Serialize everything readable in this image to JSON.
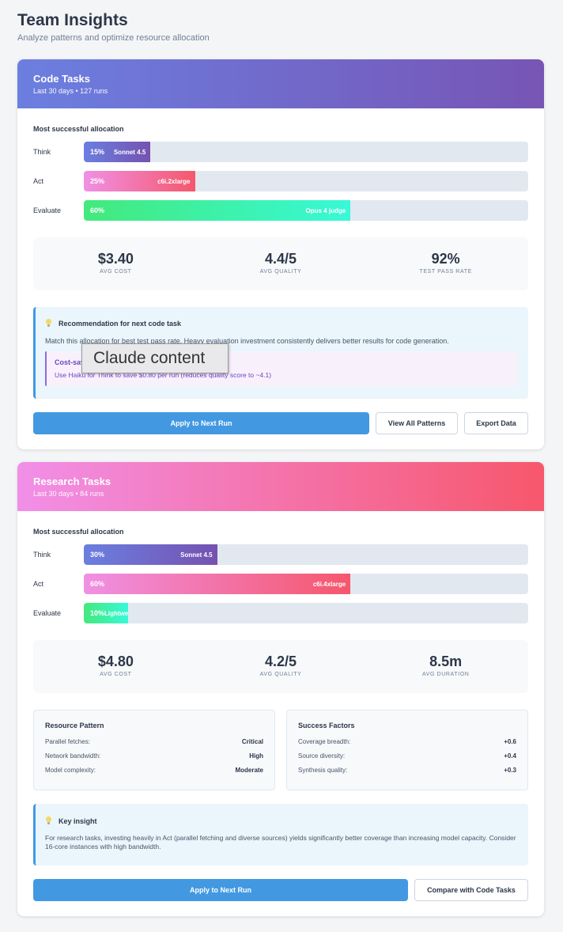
{
  "header": {
    "title": "Team Insights",
    "subtitle": "Analyze patterns and optimize resource allocation"
  },
  "colors": {
    "primary_button": "#4299e1",
    "code_header": [
      "#6b7fe0",
      "#7755b5"
    ],
    "research_header": [
      "#f18fe8",
      "#f7576c"
    ],
    "think_bar": [
      "#6b7fe0",
      "#7552b0"
    ],
    "act_bar": [
      "#f090e4",
      "#f5576c"
    ],
    "evaluate_bar": [
      "#43e97b",
      "#38f9d7"
    ]
  },
  "code": {
    "title": "Code Tasks",
    "subtitle": "Last 30 days • 127 runs",
    "section_label": "Most successful allocation",
    "allocation": [
      {
        "label": "Think",
        "pct": "15%",
        "fraction": 0.15,
        "resource": "Sonnet 4.5"
      },
      {
        "label": "Act",
        "pct": "25%",
        "fraction": 0.25,
        "resource": "c6i.2xlarge"
      },
      {
        "label": "Evaluate",
        "pct": "60%",
        "fraction": 0.6,
        "resource": "Opus 4 judge"
      }
    ],
    "stats": [
      {
        "value": "$3.40",
        "label": "AVG COST"
      },
      {
        "value": "4.4/5",
        "label": "AVG QUALITY"
      },
      {
        "value": "92%",
        "label": "TEST PASS RATE"
      }
    ],
    "recommendation": {
      "title": "Recommendation for next code task",
      "text": "Match this allocation for best test pass rate. Heavy evaluation investment consistently delivers better results for code generation.",
      "cost_title": "Cost-saving option",
      "cost_text": "Use Haiku for Think to save $0.80 per run (reduces quality score to ~4.1)"
    },
    "overlay_text": "Claude content",
    "actions": {
      "apply": "Apply to Next Run",
      "view_all": "View All Patterns",
      "export": "Export Data"
    }
  },
  "research": {
    "title": "Research Tasks",
    "subtitle": "Last 30 days • 84 runs",
    "section_label": "Most successful allocation",
    "allocation": [
      {
        "label": "Think",
        "pct": "30%",
        "fraction": 0.3,
        "resource": "Sonnet 4.5"
      },
      {
        "label": "Act",
        "pct": "60%",
        "fraction": 0.6,
        "resource": "c6i.4xlarge"
      },
      {
        "label": "Evaluate",
        "pct": "10%",
        "fraction": 0.1,
        "resource": "Lightweight"
      }
    ],
    "stats": [
      {
        "value": "$4.80",
        "label": "AVG COST"
      },
      {
        "value": "4.2/5",
        "label": "AVG QUALITY"
      },
      {
        "value": "8.5m",
        "label": "AVG DURATION"
      }
    ],
    "resource_pattern": {
      "title": "Resource Pattern",
      "rows": [
        {
          "k": "Parallel fetches:",
          "v": "Critical"
        },
        {
          "k": "Network bandwidth:",
          "v": "High"
        },
        {
          "k": "Model complexity:",
          "v": "Moderate"
        }
      ]
    },
    "success_factors": {
      "title": "Success Factors",
      "rows": [
        {
          "k": "Coverage breadth:",
          "v": "+0.6"
        },
        {
          "k": "Source diversity:",
          "v": "+0.4"
        },
        {
          "k": "Synthesis quality:",
          "v": "+0.3"
        }
      ]
    },
    "insight": {
      "title": "Key insight",
      "text": "For research tasks, investing heavily in Act (parallel fetching and diverse sources) yields significantly better coverage than increasing model capacity. Consider 16-core instances with high bandwidth."
    },
    "actions": {
      "apply": "Apply to Next Run",
      "compare": "Compare with Code Tasks"
    }
  }
}
